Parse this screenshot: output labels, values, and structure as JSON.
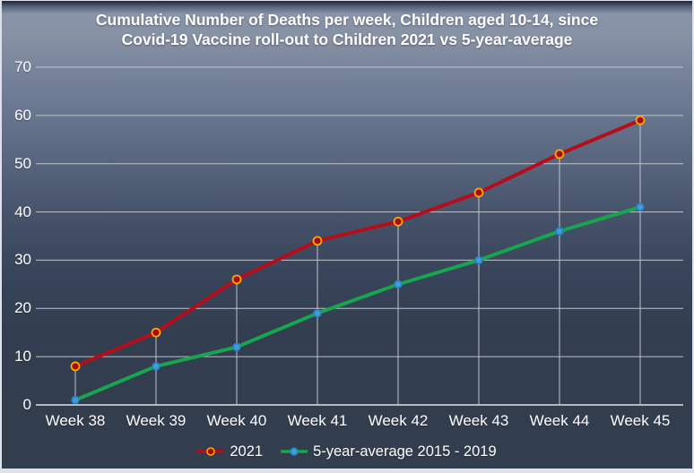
{
  "title": {
    "line1": "Cumulative Number of Deaths per week, Children aged 10-14, since",
    "line2": "Covid-19 Vaccine roll-out to Children 2021 vs 5-year-average"
  },
  "chart_data": {
    "type": "line",
    "categories": [
      "Week 38",
      "Week 39",
      "Week 40",
      "Week 41",
      "Week 42",
      "Week 43",
      "Week 44",
      "Week 45"
    ],
    "series": [
      {
        "name": "2021",
        "values": [
          8,
          15,
          26,
          34,
          38,
          44,
          52,
          59
        ],
        "line_color": "#b70d1a",
        "line_width": 4,
        "marker_fill": "#a80c13",
        "marker_stroke": "#ffa800",
        "marker_radius": 4.5
      },
      {
        "name": "5-year-average 2015 - 2019",
        "values": [
          1,
          8,
          12,
          19,
          25,
          30,
          36,
          41
        ],
        "line_color": "#17a54e",
        "line_width": 4,
        "marker_fill": "#3d9fe0",
        "marker_stroke": "#2b84c2",
        "marker_radius": 3.8
      }
    ],
    "y_ticks": [
      0,
      10,
      20,
      30,
      40,
      50,
      60,
      70
    ],
    "ylim": [
      0,
      70
    ],
    "xlabel": "",
    "ylabel": "",
    "grid": true,
    "drop_lines": "vertical lines from 2021 series points down to x-axis",
    "legend_position": "bottom",
    "style": {
      "gridline_color": "#ccd0d6",
      "axis_line_color": "#dfe2e7",
      "drop_line_color": "#c6cbd3",
      "text_color": "#ffffff",
      "background_top": "#8a94a8",
      "background_bottom": "#323d4e"
    }
  }
}
